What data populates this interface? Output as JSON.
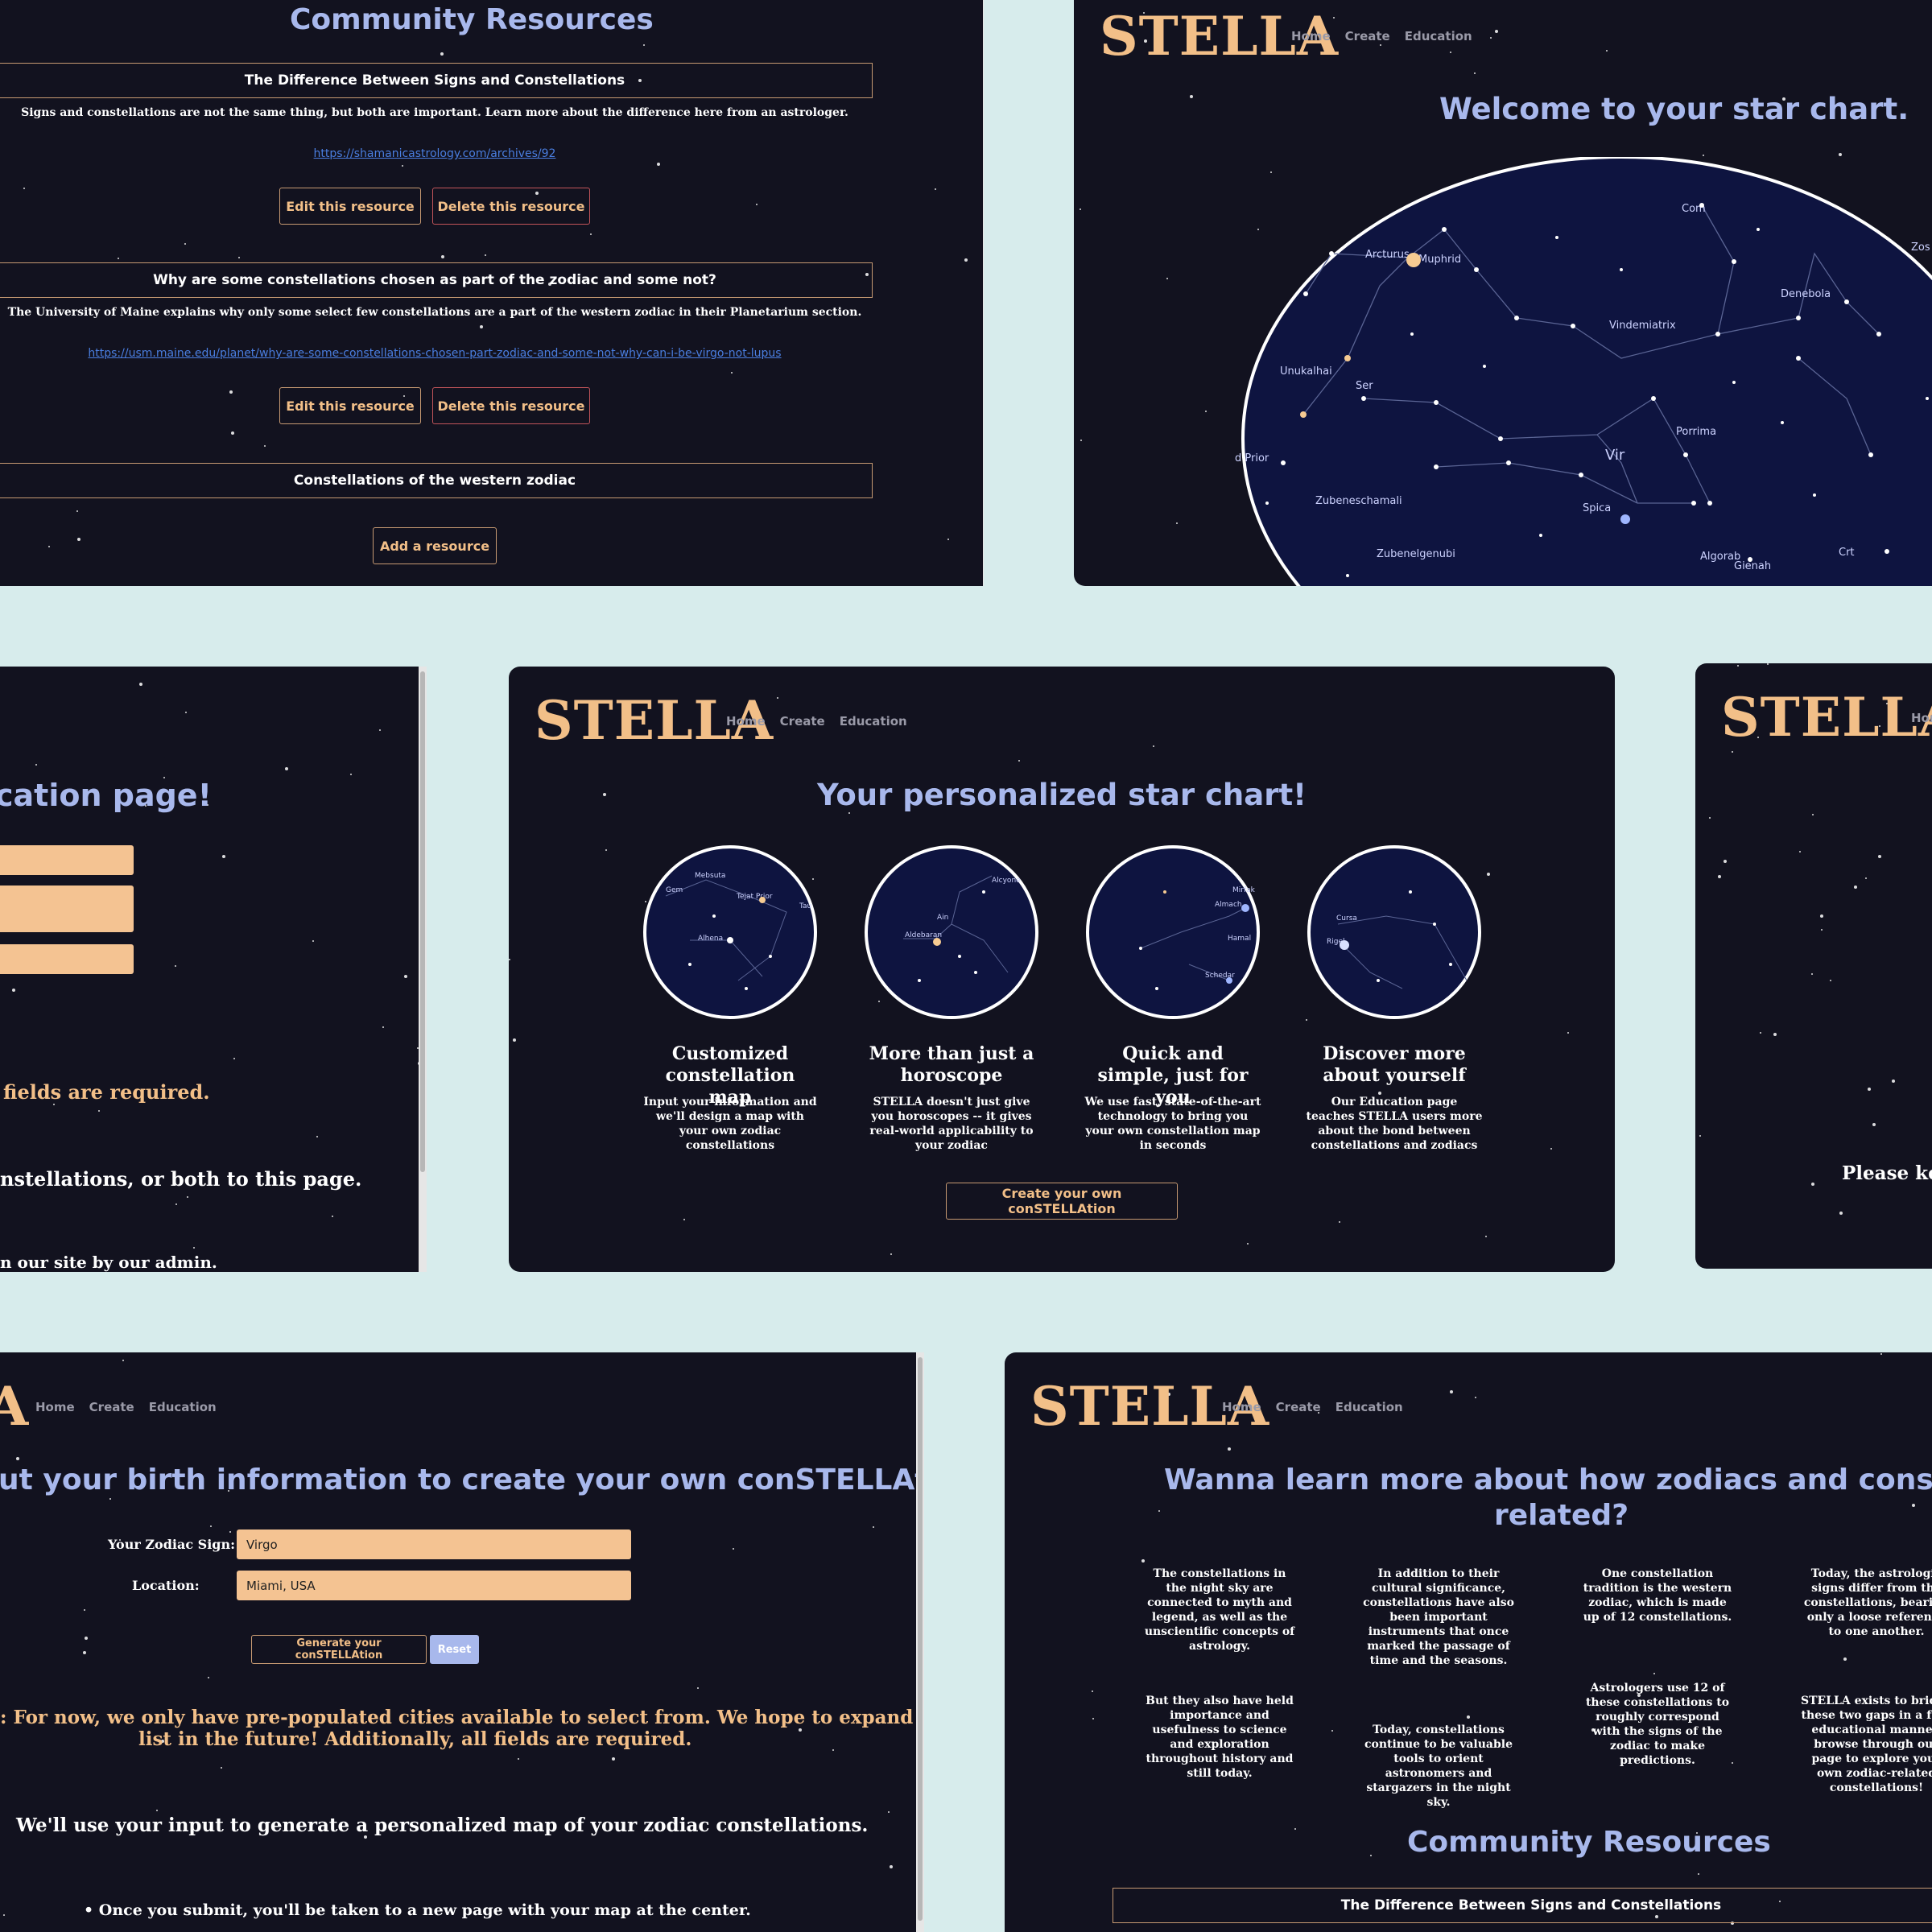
{
  "community_panel": {
    "title": "Community Resources",
    "resources": [
      {
        "title": "The Difference Between Signs and Constellations",
        "description": "Signs and constellations are not the same thing, but both are important. Learn more about the difference here from an astrologer.",
        "link": "https://shamanicastrology.com/archives/92",
        "edit_label": "Edit this resource",
        "delete_label": "Delete this resource"
      },
      {
        "title": "Why are some constellations chosen as part of the zodiac and some not?",
        "description": "The University of Maine explains why only some select few constellations are a part of the western zodiac in their Planetarium section.",
        "link": "https://usm.maine.edu/planet/why-are-some-constellations-chosen-part-zodiac-and-some-not-why-can-i-be-virgo-not-lupus",
        "edit_label": "Edit this resource",
        "delete_label": "Delete this resource"
      },
      {
        "title": "Constellations of the western zodiac"
      }
    ],
    "add_label": "Add a resource"
  },
  "starchart_panel": {
    "logo": "STELLA",
    "nav": [
      "Home",
      "Create",
      "Education"
    ],
    "title": "Welcome to your star chart.",
    "labels": [
      "Com",
      "Arcturus",
      "Muphrid",
      "Denebola",
      "Vindemiatrix",
      "Unukalhai",
      "Ser",
      "Porrima",
      "Vir",
      "d Prior",
      "Zubeneschamali",
      "Spica",
      "Zubenelgenubi",
      "Algorab",
      "Gienah",
      "Crt",
      "Zos"
    ]
  },
  "education_form_panel": {
    "title": "cation page!",
    "required_text": "fields are required.",
    "body_text": "nstellations, or both to this page.",
    "footer_text": "n our site by our admin."
  },
  "home_panel": {
    "logo": "STELLA",
    "nav": [
      "Home",
      "Create",
      "Education"
    ],
    "title": "Your personalized star chart!",
    "features": [
      {
        "title": "Customized constellation map",
        "desc": "Input your information and we'll design a map with your own zodiac constellations"
      },
      {
        "title": "More than just a horoscope",
        "desc": "STELLA doesn't just give you horoscopes -- it gives real-world applicability to your zodiac"
      },
      {
        "title": "Quick and simple, just for you",
        "desc": "We use fast, state-of-the-art technology to bring you your own constellation map in seconds"
      },
      {
        "title": "Discover more about yourself",
        "desc": "Our Education page teaches STELLA users more about the bond between constellations and zodiacs"
      }
    ],
    "cta_label": "Create your own conSTELLAtion",
    "circle_labels": [
      [
        "Gem",
        "Mebsuta",
        "Tejat Prior",
        "Tau",
        "Alhena"
      ],
      [
        "Aldebaran",
        "Ain",
        "Alcyone"
      ],
      [
        "Mirfak",
        "Almach",
        "Hamal",
        "Schedar"
      ],
      [
        "Cursa",
        "Rigel"
      ]
    ]
  },
  "right_stub_panel": {
    "logo": "STELLA",
    "nav_fragment": "Hon",
    "text": "Please kee"
  },
  "create_panel": {
    "logo_fragment": "A",
    "nav": [
      "Home",
      "Create",
      "Education"
    ],
    "title": "ut your birth information to create your own conSTELLAtion!",
    "zodiac_label": "Your Zodiac Sign:",
    "zodiac_value": "Virgo",
    "location_label": "Location:",
    "location_value": "Miami, USA",
    "generate_label": "Generate your conSTELLAtion",
    "reset_label": "Reset",
    "note_line1": ": For now, we only have pre-populated cities available to select from. We hope to expand this",
    "note_line2": "list in the future! Additionally, all fields are required.",
    "info_text": "We'll use your input to generate a personalized map of your zodiac constellations.",
    "bullet_text": "Once you submit, you'll be taken to a new page with your map at the center."
  },
  "education_panel": {
    "logo": "STELLA",
    "nav": [
      "Home",
      "Create",
      "Education"
    ],
    "title_line1": "Wanna learn more about how zodiacs and constellations are",
    "title_line2": "related?",
    "columns": [
      {
        "top": "The constellations in the night sky are connected to myth and legend, as well as the unscientific concepts of astrology.",
        "bottom": "But they also have held importance and usefulness to science and exploration throughout history and still today."
      },
      {
        "top": "In addition to their cultural significance, constellations have also been important instruments that once marked the passage of time and the seasons.",
        "bottom": "Today, constellations continue to be valuable tools to orient astronomers and stargazers in the night sky."
      },
      {
        "top": "One constellation tradition is the western zodiac, which is made up of 12 constellations.",
        "bottom": "Astrologers use 12 of these constellations to roughly correspond with the signs of the zodiac to make predictions."
      },
      {
        "top": "Today, the astrologic signs differ from the constellations, bearing only a loose reference to one another.",
        "bottom": "STELLA exists to bridge these two gaps in a fun, educational manner. browse through our page to explore your own zodiac-related constellations!"
      }
    ],
    "community_title": "Community Resources",
    "first_resource": "The Difference Between Signs and Constellations"
  }
}
